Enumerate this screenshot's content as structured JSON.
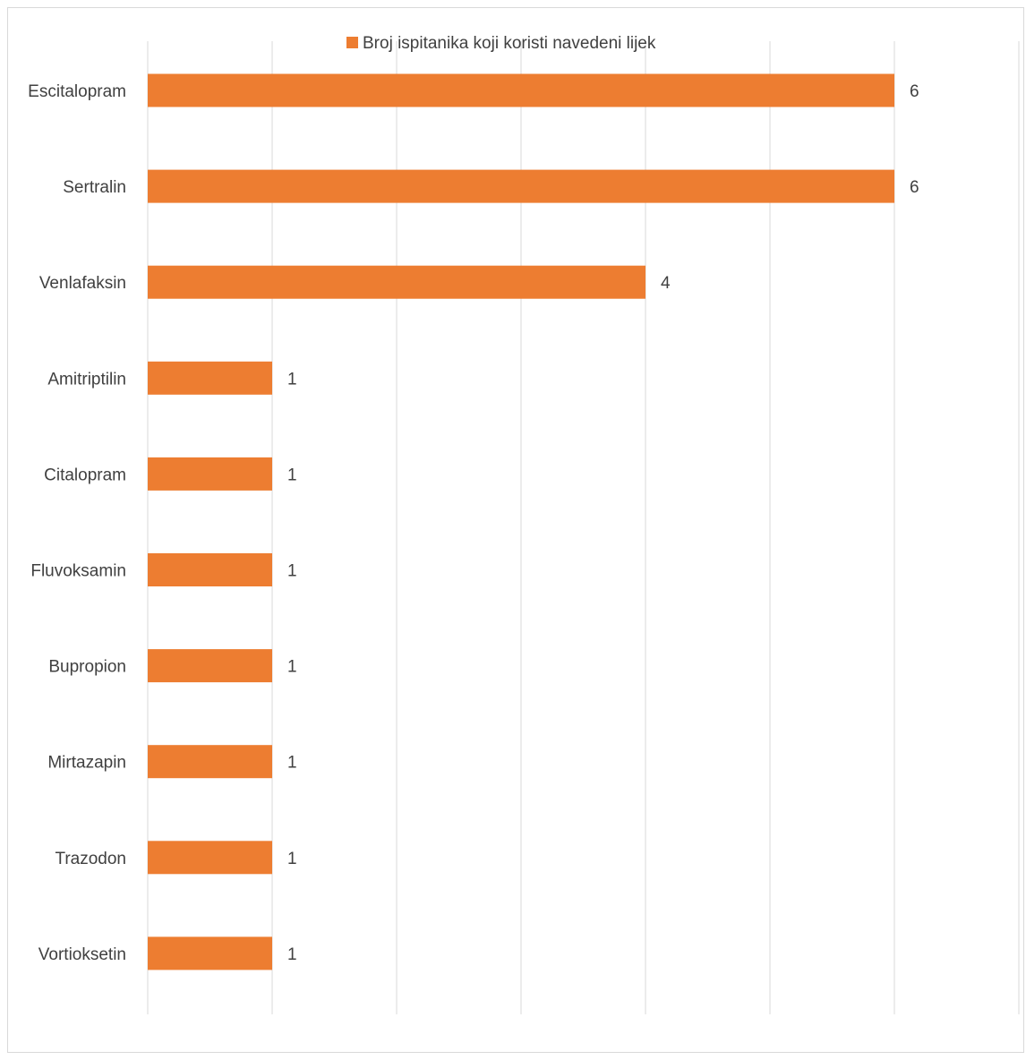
{
  "chart_data": {
    "type": "bar",
    "orientation": "horizontal",
    "legend": {
      "label": "Broj ispitanika koji koristi navedeni lijek",
      "position": "top"
    },
    "categories": [
      "Escitalopram",
      "Sertralin",
      "Venlafaksin",
      "Amitriptilin",
      "Citalopram",
      "Fluvoksamin",
      "Bupropion",
      "Mirtazapin",
      "Trazodon",
      "Vortioksetin"
    ],
    "values": [
      6,
      6,
      4,
      1,
      1,
      1,
      1,
      1,
      1,
      1
    ],
    "xlim": [
      0,
      7
    ],
    "grid": true,
    "data_labels": true,
    "colors": {
      "bar": "#ED7D31",
      "grid": "#d9d9d9",
      "text": "#404040"
    }
  }
}
